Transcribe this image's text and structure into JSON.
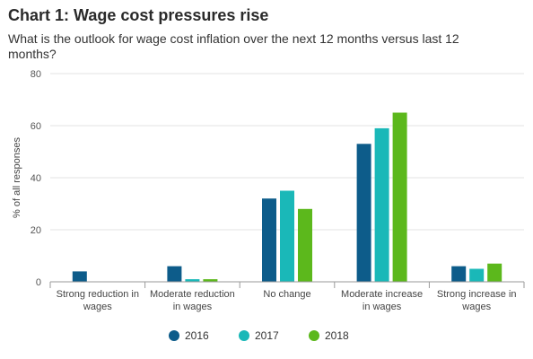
{
  "chart_data": {
    "type": "bar",
    "title": "Chart 1: Wage cost pressures rise",
    "subtitle": "What is the outlook for wage cost inflation over the next 12 months versus last 12 months?",
    "ylabel": "% of all responses",
    "xlabel": "",
    "ylim": [
      0,
      80
    ],
    "yticks": [
      0,
      20,
      40,
      60,
      80
    ],
    "grid": true,
    "legend_position": "bottom",
    "categories": [
      [
        "Strong reduction in",
        "wages"
      ],
      [
        "Moderate reduction",
        "in wages"
      ],
      [
        "No change"
      ],
      [
        "Moderate increase",
        "in wages"
      ],
      [
        "Strong increase in",
        "wages"
      ]
    ],
    "series": [
      {
        "name": "2016",
        "color": "#0d5c8a",
        "values": [
          4,
          6,
          32,
          53,
          6
        ]
      },
      {
        "name": "2017",
        "color": "#1ab8b8",
        "values": [
          0,
          1,
          35,
          59,
          5
        ]
      },
      {
        "name": "2018",
        "color": "#5cb81c",
        "values": [
          0,
          1,
          28,
          65,
          7
        ]
      }
    ]
  }
}
